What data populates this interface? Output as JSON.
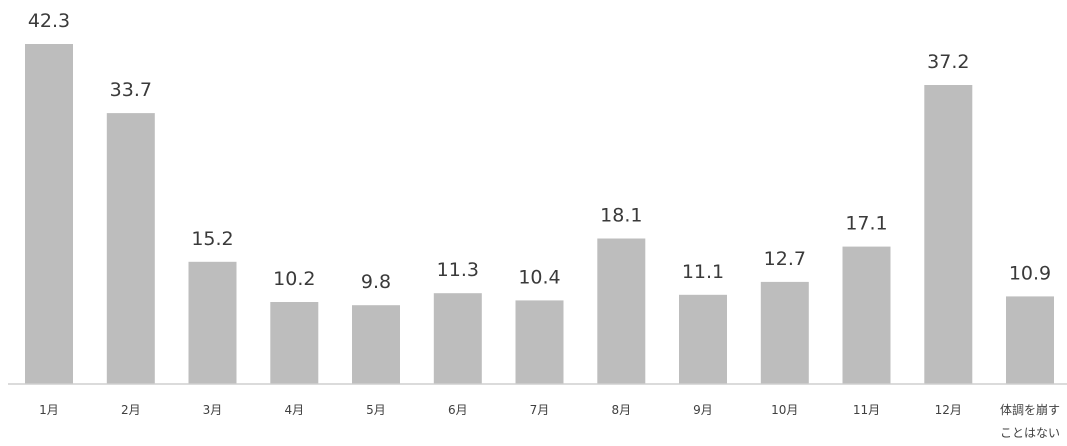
{
  "chart_data": {
    "type": "bar",
    "categories": [
      "1月",
      "2月",
      "3月",
      "4月",
      "5月",
      "6月",
      "7月",
      "8月",
      "9月",
      "10月",
      "11月",
      "12月",
      "体調を崩すことはない"
    ],
    "category_lines": [
      [
        "1月"
      ],
      [
        "2月"
      ],
      [
        "3月"
      ],
      [
        "4月"
      ],
      [
        "5月"
      ],
      [
        "6月"
      ],
      [
        "7月"
      ],
      [
        "8月"
      ],
      [
        "9月"
      ],
      [
        "10月"
      ],
      [
        "11月"
      ],
      [
        "12月"
      ],
      [
        "体調を崩す",
        "ことはない"
      ]
    ],
    "values": [
      42.3,
      33.7,
      15.2,
      10.2,
      9.8,
      11.3,
      10.4,
      18.1,
      11.1,
      12.7,
      17.1,
      37.2,
      10.9
    ],
    "value_labels": [
      "42.3",
      "33.7",
      "15.2",
      "10.2",
      "9.8",
      "11.3",
      "10.4",
      "18.1",
      "11.1",
      "12.7",
      "17.1",
      "37.2",
      "10.9"
    ],
    "bar_color": "#bdbdbd",
    "ylim": [
      0,
      42.3
    ],
    "grid": false,
    "title": "",
    "xlabel": "",
    "ylabel": ""
  }
}
